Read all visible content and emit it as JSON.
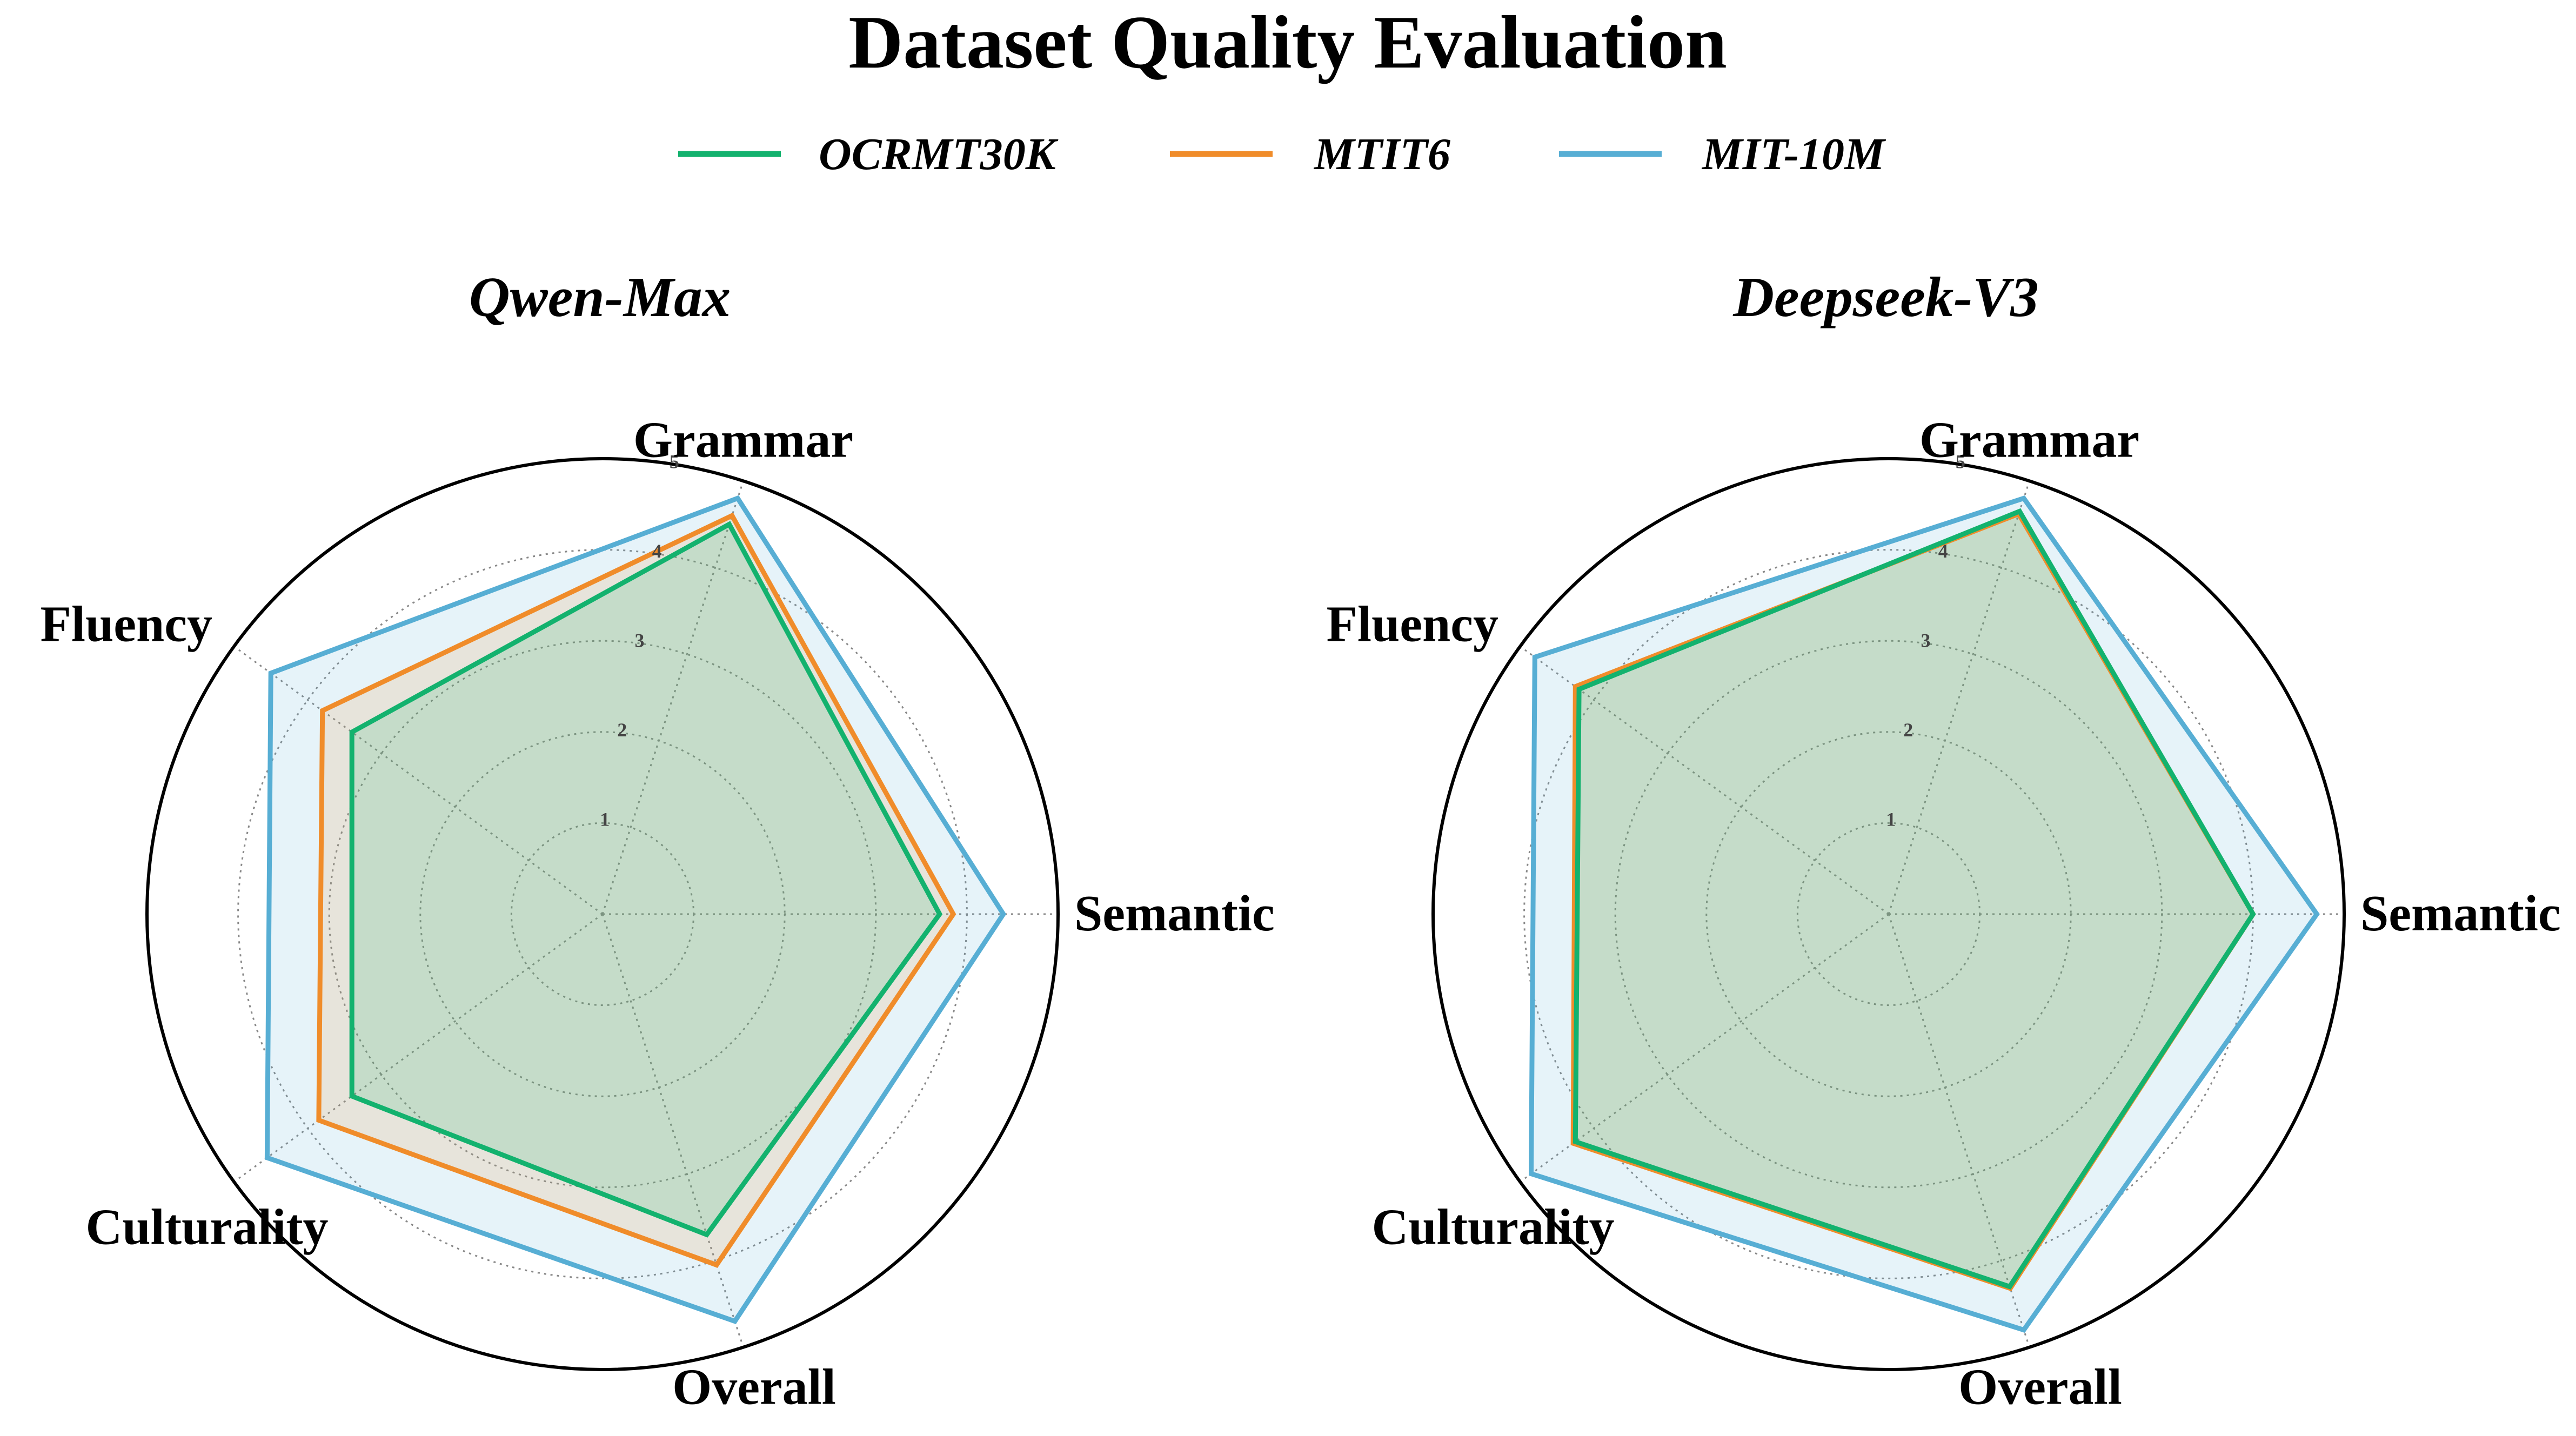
{
  "title": "Dataset Quality Evaluation",
  "legend": {
    "placement": "top-center",
    "entries": [
      {
        "name": "OCRMT30K",
        "color": "#13b26e"
      },
      {
        "name": "MTIT6",
        "color": "#f08c2a"
      },
      {
        "name": "MIT-10M",
        "color": "#57aed4"
      }
    ]
  },
  "chart_data": [
    {
      "type": "radar",
      "title": "Qwen-Max",
      "axes": [
        "Semantic",
        "Grammar",
        "Fluency",
        "Culturality",
        "Overall"
      ],
      "r_ticks": [
        "1",
        "2",
        "3",
        "4",
        "5"
      ],
      "rlim": [
        0,
        5
      ],
      "grid": true,
      "series": [
        {
          "name": "OCRMT30K",
          "color": "#13b26e",
          "values": [
            3.7,
            4.5,
            3.4,
            3.4,
            3.7
          ]
        },
        {
          "name": "MTIT6",
          "color": "#f08c2a",
          "values": [
            3.85,
            4.6,
            3.8,
            3.85,
            4.05
          ]
        },
        {
          "name": "MIT-10M",
          "color": "#57aed4",
          "values": [
            4.4,
            4.8,
            4.5,
            4.55,
            4.7
          ]
        }
      ]
    },
    {
      "type": "radar",
      "title": "Deepseek-V3",
      "axes": [
        "Semantic",
        "Grammar",
        "Fluency",
        "Culturality",
        "Overall"
      ],
      "r_ticks": [
        "1",
        "2",
        "3",
        "4",
        "5"
      ],
      "rlim": [
        0,
        5
      ],
      "grid": true,
      "series": [
        {
          "name": "OCRMT30K",
          "color": "#13b26e",
          "values": [
            4.0,
            4.65,
            4.2,
            4.25,
            4.3
          ]
        },
        {
          "name": "MTIT6",
          "color": "#f08c2a",
          "values": [
            4.0,
            4.62,
            4.25,
            4.28,
            4.32
          ]
        },
        {
          "name": "MIT-10M",
          "color": "#57aed4",
          "values": [
            4.7,
            4.8,
            4.8,
            4.85,
            4.8
          ]
        }
      ]
    }
  ]
}
